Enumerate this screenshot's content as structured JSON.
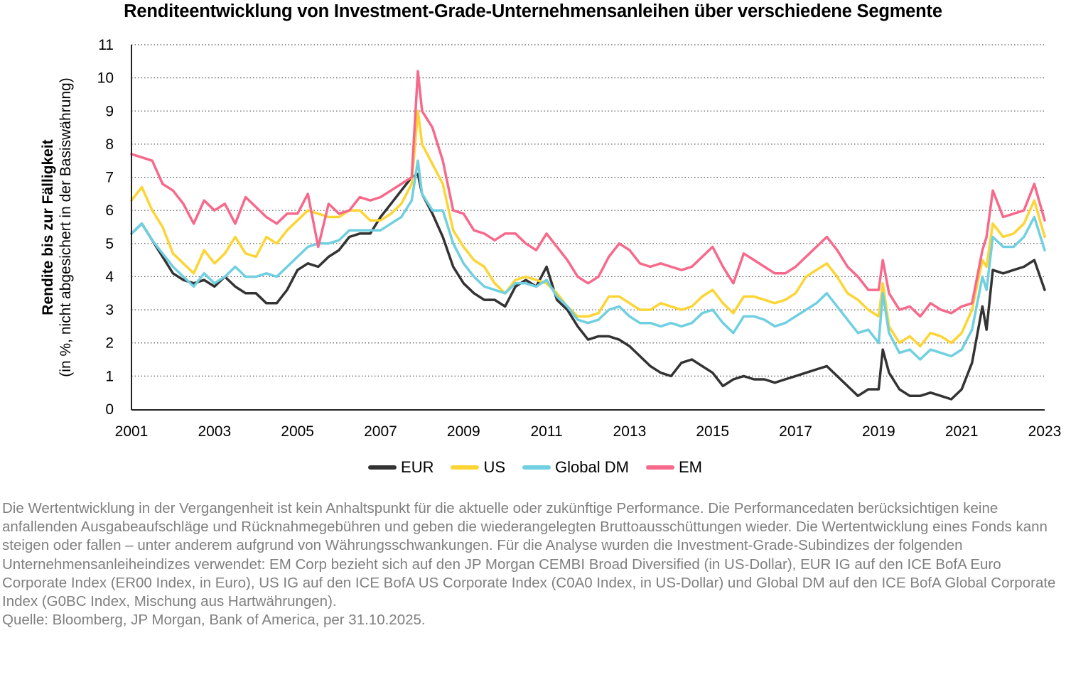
{
  "title": "Renditeentwicklung von Investment-Grade-Unternehmensanleihen über verschiedene Segmente",
  "y_axis": {
    "label_bold": "Rendite bis zur Fälligkeit",
    "label_sub": "(in %, nicht abgesichert in der Basiswährung)"
  },
  "legend": [
    {
      "name": "EUR",
      "color": "#333333"
    },
    {
      "name": "US",
      "color": "#FCD535"
    },
    {
      "name": "Global DM",
      "color": "#70CFE0"
    },
    {
      "name": "EM",
      "color": "#F7698B"
    }
  ],
  "footnote": {
    "disclaimer": "Die Wertentwicklung in der Vergangenheit ist kein Anhaltspunkt für die aktuelle oder zukünftige Performance. Die Performancedaten berücksichtigen keine anfallenden Ausgabeaufschläge und Rücknahmegebühren und geben die wiederangelegten Bruttoausschüttungen wieder. Die Wertentwicklung eines Fonds kann steigen oder fallen – unter anderem aufgrund von Währungsschwankungen. Für die Analyse wurden die Investment-Grade-Subindizes der folgenden Unternehmensanleiheindizes verwendet: EM Corp bezieht sich auf den JP Morgan CEMBI Broad Diversified (in US-Dollar), EUR IG auf den ICE BofA Euro Corporate Index (ER00 Index, in Euro), US IG auf den ICE BofA US Corporate Index (C0A0 Index, in US-Dollar) und Global DM auf den ICE BofA Global Corporate Index (G0BC Index, Mischung aus Hartwährungen).",
    "source": "Quelle: Bloomberg, JP Morgan, Bank of America, per 31.10.2025."
  },
  "chart_data": {
    "type": "line",
    "title": "Renditeentwicklung von Investment-Grade-Unternehmensanleihen über verschiedene Segmente",
    "xlabel": "",
    "ylabel": "Rendite bis zur Fälligkeit (in %, nicht abgesichert in der Basiswährung)",
    "xlim": [
      2001,
      2023
    ],
    "ylim": [
      0,
      11
    ],
    "x_ticks": [
      "2001",
      "2003",
      "2005",
      "2007",
      "2009",
      "2011",
      "2013",
      "2015",
      "2017",
      "2019",
      "2021",
      "2023"
    ],
    "y_ticks": [
      "0",
      "1",
      "2",
      "3",
      "4",
      "5",
      "6",
      "7",
      "8",
      "9",
      "10",
      "11"
    ],
    "grid": "horizontal dotted",
    "legend_position": "bottom",
    "x": [
      2001.0,
      2001.25,
      2001.5,
      2001.75,
      2002.0,
      2002.25,
      2002.5,
      2002.75,
      2003.0,
      2003.25,
      2003.5,
      2003.75,
      2004.0,
      2004.25,
      2004.5,
      2004.75,
      2005.0,
      2005.25,
      2005.5,
      2005.75,
      2006.0,
      2006.25,
      2006.5,
      2006.75,
      2007.0,
      2007.25,
      2007.5,
      2007.75,
      2007.9,
      2008.0,
      2008.25,
      2008.5,
      2008.75,
      2009.0,
      2009.25,
      2009.5,
      2009.75,
      2010.0,
      2010.25,
      2010.5,
      2010.75,
      2011.0,
      2011.25,
      2011.5,
      2011.75,
      2012.0,
      2012.25,
      2012.5,
      2012.75,
      2013.0,
      2013.25,
      2013.5,
      2013.75,
      2014.0,
      2014.25,
      2014.5,
      2014.75,
      2015.0,
      2015.25,
      2015.5,
      2015.75,
      2016.0,
      2016.25,
      2016.5,
      2016.75,
      2017.0,
      2017.25,
      2017.5,
      2017.75,
      2018.0,
      2018.25,
      2018.5,
      2018.75,
      2019.0,
      2019.1,
      2019.25,
      2019.5,
      2019.75,
      2020.0,
      2020.25,
      2020.5,
      2020.75,
      2021.0,
      2021.25,
      2021.5,
      2021.6,
      2021.75,
      2022.0,
      2022.25,
      2022.5,
      2022.75,
      2023.0
    ],
    "series": [
      {
        "name": "EUR",
        "color": "#333333",
        "values": [
          5.3,
          5.6,
          5.1,
          4.6,
          4.1,
          3.9,
          3.8,
          3.9,
          3.7,
          4.0,
          3.7,
          3.5,
          3.5,
          3.2,
          3.2,
          3.6,
          4.2,
          4.4,
          4.3,
          4.6,
          4.8,
          5.2,
          5.3,
          5.3,
          5.8,
          6.2,
          6.6,
          7.0,
          7.1,
          6.5,
          5.9,
          5.2,
          4.3,
          3.8,
          3.5,
          3.3,
          3.3,
          3.1,
          3.7,
          3.9,
          3.7,
          4.3,
          3.3,
          3.0,
          2.5,
          2.1,
          2.2,
          2.2,
          2.1,
          1.9,
          1.6,
          1.3,
          1.1,
          1.0,
          1.4,
          1.5,
          1.3,
          1.1,
          0.7,
          0.9,
          1.0,
          0.9,
          0.9,
          0.8,
          0.9,
          1.0,
          1.1,
          1.2,
          1.3,
          1.0,
          0.7,
          0.4,
          0.6,
          0.6,
          1.8,
          1.1,
          0.6,
          0.4,
          0.4,
          0.5,
          0.4,
          0.3,
          0.6,
          1.4,
          3.1,
          2.4,
          4.2,
          4.1,
          4.2,
          4.3,
          4.5,
          3.6
        ]
      },
      {
        "name": "US",
        "color": "#FCD535",
        "values": [
          6.3,
          6.7,
          6.0,
          5.5,
          4.7,
          4.4,
          4.1,
          4.8,
          4.4,
          4.7,
          5.2,
          4.7,
          4.6,
          5.2,
          5.0,
          5.4,
          5.7,
          6.0,
          5.9,
          5.8,
          5.8,
          6.0,
          6.0,
          5.7,
          5.7,
          5.9,
          6.2,
          6.8,
          9.0,
          8.0,
          7.4,
          6.8,
          5.4,
          4.9,
          4.5,
          4.3,
          3.8,
          3.5,
          3.9,
          4.0,
          3.9,
          3.8,
          3.5,
          3.1,
          2.8,
          2.8,
          2.9,
          3.4,
          3.4,
          3.2,
          3.0,
          3.0,
          3.2,
          3.1,
          3.0,
          3.1,
          3.4,
          3.6,
          3.2,
          2.9,
          3.4,
          3.4,
          3.3,
          3.2,
          3.3,
          3.5,
          4.0,
          4.2,
          4.4,
          4.0,
          3.5,
          3.3,
          3.0,
          2.8,
          3.8,
          2.5,
          2.0,
          2.2,
          1.9,
          2.3,
          2.2,
          2.0,
          2.3,
          3.0,
          4.5,
          4.3,
          5.6,
          5.2,
          5.3,
          5.6,
          6.3,
          5.2
        ]
      },
      {
        "name": "Global DM",
        "color": "#70CFE0",
        "values": [
          5.3,
          5.6,
          5.1,
          4.7,
          4.3,
          4.0,
          3.7,
          4.1,
          3.8,
          4.0,
          4.3,
          4.0,
          4.0,
          4.1,
          4.0,
          4.3,
          4.6,
          4.9,
          5.0,
          5.0,
          5.1,
          5.4,
          5.4,
          5.4,
          5.4,
          5.6,
          5.8,
          6.3,
          7.5,
          6.5,
          6.0,
          6.0,
          5.0,
          4.4,
          4.0,
          3.7,
          3.6,
          3.5,
          3.8,
          3.8,
          3.7,
          3.9,
          3.4,
          3.1,
          2.7,
          2.6,
          2.7,
          3.0,
          3.1,
          2.8,
          2.6,
          2.6,
          2.5,
          2.6,
          2.5,
          2.6,
          2.9,
          3.0,
          2.6,
          2.3,
          2.8,
          2.8,
          2.7,
          2.5,
          2.6,
          2.8,
          3.0,
          3.2,
          3.5,
          3.1,
          2.7,
          2.3,
          2.4,
          2.0,
          3.5,
          2.3,
          1.7,
          1.8,
          1.5,
          1.8,
          1.7,
          1.6,
          1.8,
          2.4,
          4.0,
          3.6,
          5.2,
          4.9,
          4.9,
          5.2,
          5.8,
          4.8
        ]
      },
      {
        "name": "EM",
        "color": "#F7698B",
        "values": [
          7.7,
          7.6,
          7.5,
          6.8,
          6.6,
          6.2,
          5.6,
          6.3,
          6.0,
          6.2,
          5.6,
          6.4,
          6.1,
          5.8,
          5.6,
          5.9,
          5.9,
          6.5,
          4.9,
          6.2,
          5.9,
          6.0,
          6.4,
          6.3,
          6.4,
          6.6,
          6.8,
          7.0,
          10.2,
          9.0,
          8.5,
          7.5,
          6.0,
          5.9,
          5.4,
          5.3,
          5.1,
          5.3,
          5.3,
          5.0,
          4.8,
          5.3,
          4.9,
          4.5,
          4.0,
          3.8,
          4.0,
          4.6,
          5.0,
          4.8,
          4.4,
          4.3,
          4.4,
          4.3,
          4.2,
          4.3,
          4.6,
          4.9,
          4.3,
          3.8,
          4.7,
          4.5,
          4.3,
          4.1,
          4.1,
          4.3,
          4.6,
          4.9,
          5.2,
          4.8,
          4.3,
          4.0,
          3.6,
          3.6,
          4.5,
          3.5,
          3.0,
          3.1,
          2.8,
          3.2,
          3.0,
          2.9,
          3.1,
          3.2,
          4.8,
          5.2,
          6.6,
          5.8,
          5.9,
          6.0,
          6.8,
          5.7
        ]
      }
    ]
  }
}
